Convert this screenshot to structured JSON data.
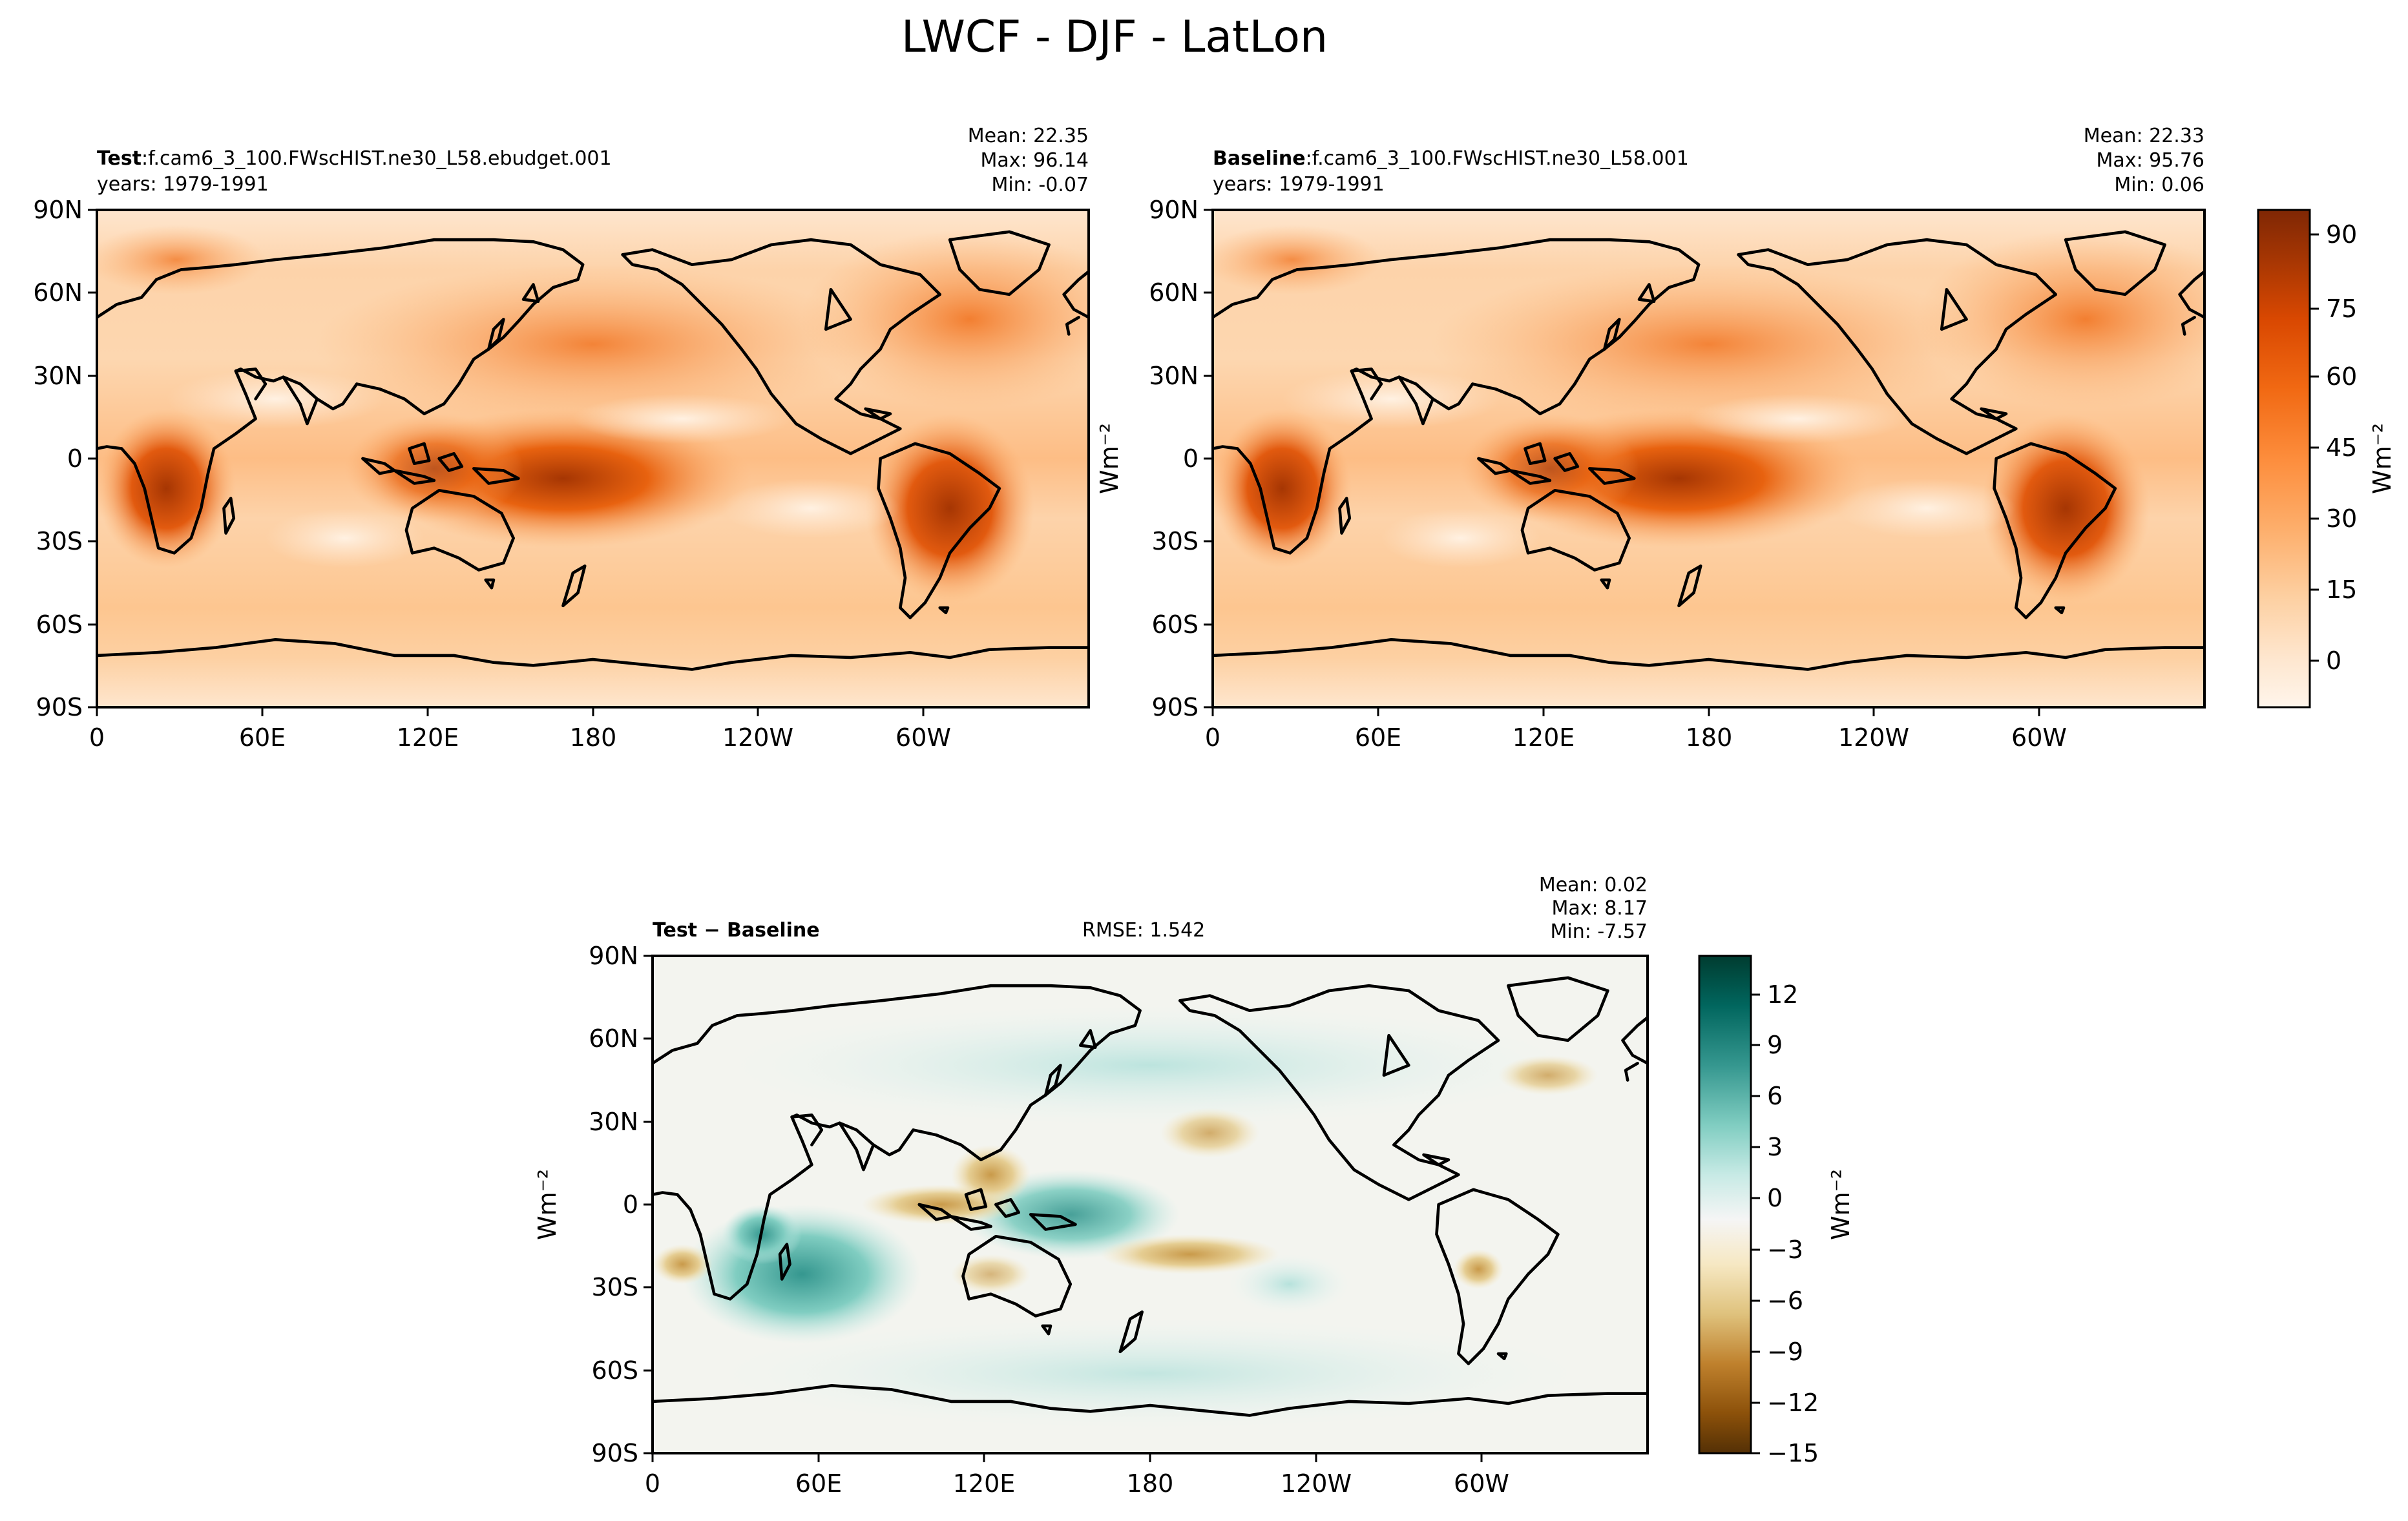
{
  "figure": {
    "title": "LWCF - DJF - LatLon"
  },
  "panels": [
    {
      "id": "test",
      "label_bold": "Test",
      "label_sep": ":",
      "case": "f.cam6_3_100.FWscHIST.ne30_L58.ebudget.001",
      "years": "years: 1979-1991",
      "stats": [
        "Mean: 22.35",
        "Max: 96.14",
        "Min: -0.07"
      ],
      "ylabel": "Wm⁻²",
      "lat_ticks": [
        "90N",
        "60N",
        "30N",
        "0",
        "30S",
        "60S",
        "90S"
      ],
      "lon_ticks": [
        "0",
        "60E",
        "120E",
        "180",
        "120W",
        "60W"
      ],
      "colormap": "oranges"
    },
    {
      "id": "baseline",
      "label_bold": "Baseline",
      "label_sep": ":",
      "case": "f.cam6_3_100.FWscHIST.ne30_L58.001",
      "years": "years: 1979-1991",
      "stats": [
        "Mean: 22.33",
        "Max: 95.76",
        "Min:  0.06"
      ],
      "lat_ticks": [
        "90N",
        "60N",
        "30N",
        "0",
        "30S",
        "60S",
        "90S"
      ],
      "lon_ticks": [
        "0",
        "60E",
        "120E",
        "180",
        "120W",
        "60W"
      ],
      "colormap": "oranges"
    },
    {
      "id": "diff",
      "label_bold": "Test − Baseline",
      "rmse": "RMSE: 1.542",
      "stats": [
        "Mean:  0.02",
        "Max:  8.17",
        "Min: -7.57"
      ],
      "ylabel": "Wm⁻²",
      "lat_ticks": [
        "90N",
        "60N",
        "30N",
        "0",
        "30S",
        "60S",
        "90S"
      ],
      "lon_ticks": [
        "0",
        "60E",
        "120E",
        "180",
        "120W",
        "60W"
      ],
      "colormap": "brown-teal diverging"
    }
  ],
  "colorbars": [
    {
      "id": "main",
      "ticks": [
        "90",
        "75",
        "60",
        "45",
        "30",
        "15",
        "0"
      ],
      "label": "Wm⁻²",
      "colors": [
        "#fff5eb",
        "#fee6ce",
        "#fdd0a2",
        "#fdae6b",
        "#fd8d3c",
        "#f16913",
        "#d94801",
        "#a63603",
        "#7f2704"
      ]
    },
    {
      "id": "diff",
      "ticks": [
        "12",
        "9",
        "6",
        "3",
        "0",
        "−3",
        "−6",
        "−9",
        "−12",
        "−15"
      ],
      "label": "Wm⁻²",
      "colors": [
        "#003c30",
        "#01665e",
        "#35978f",
        "#80cdc1",
        "#c7eae5",
        "#f5f5f5",
        "#f6e8c3",
        "#dfc27d",
        "#bf812d",
        "#8c510a",
        "#543005"
      ]
    }
  ]
}
